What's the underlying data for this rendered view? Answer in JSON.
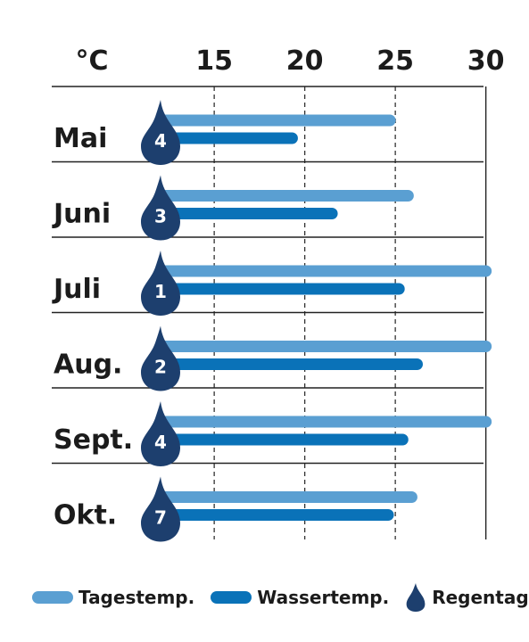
{
  "chart_data": {
    "type": "bar",
    "orientation": "horizontal",
    "unit": "°C",
    "x_ticks": [
      "15",
      "20",
      "25",
      "30"
    ],
    "xlim": [
      11.2,
      30.2
    ],
    "grid": "dashed vertical",
    "categories": [
      "Mai",
      "Juni",
      "Juli",
      "Aug.",
      "Sept.",
      "Okt."
    ],
    "series": [
      {
        "name": "Tagestemp.",
        "color": "#5a9fd2",
        "values": [
          24.7,
          25.7,
          30,
          30,
          30,
          25.9
        ]
      },
      {
        "name": "Wassertemp.",
        "color": "#0a72b8",
        "values": [
          19.3,
          21.5,
          25.2,
          26.2,
          25.4,
          24.6
        ]
      }
    ],
    "regentage": {
      "name": "Regentage",
      "color": "#1d3f6e",
      "values": [
        "4",
        "3",
        "1",
        "2",
        "4",
        "7"
      ]
    },
    "legend_position": "bottom"
  }
}
